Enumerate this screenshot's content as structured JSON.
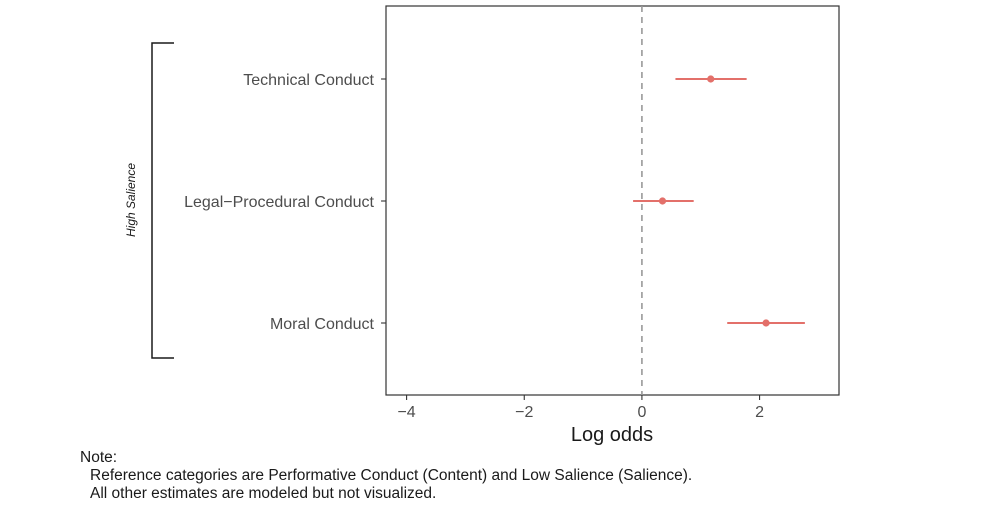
{
  "chart_data": {
    "type": "scatter",
    "xlabel": "Log odds",
    "xlim": [
      -4.35,
      3.35
    ],
    "x_ticks": [
      -4,
      -2,
      0,
      2
    ],
    "x_tick_labels": [
      "−4",
      "−2",
      "0",
      "2"
    ],
    "reference_line": 0,
    "grid": false,
    "group_label": "High Salience",
    "point_color": "#e3706a",
    "categories": [
      "Technical Conduct",
      "Legal−Procedural Conduct",
      "Moral Conduct"
    ],
    "estimates": [
      {
        "label": "Technical Conduct",
        "estimate": 1.17,
        "lower": 0.57,
        "upper": 1.78
      },
      {
        "label": "Legal−Procedural Conduct",
        "estimate": 0.35,
        "lower": -0.15,
        "upper": 0.88
      },
      {
        "label": "Moral Conduct",
        "estimate": 2.11,
        "lower": 1.45,
        "upper": 2.77
      }
    ]
  },
  "note": {
    "title": "Note:",
    "line1": "Reference categories are Performative Conduct (Content) and Low Salience (Salience).",
    "line2": "All other estimates are modeled but not visualized."
  }
}
